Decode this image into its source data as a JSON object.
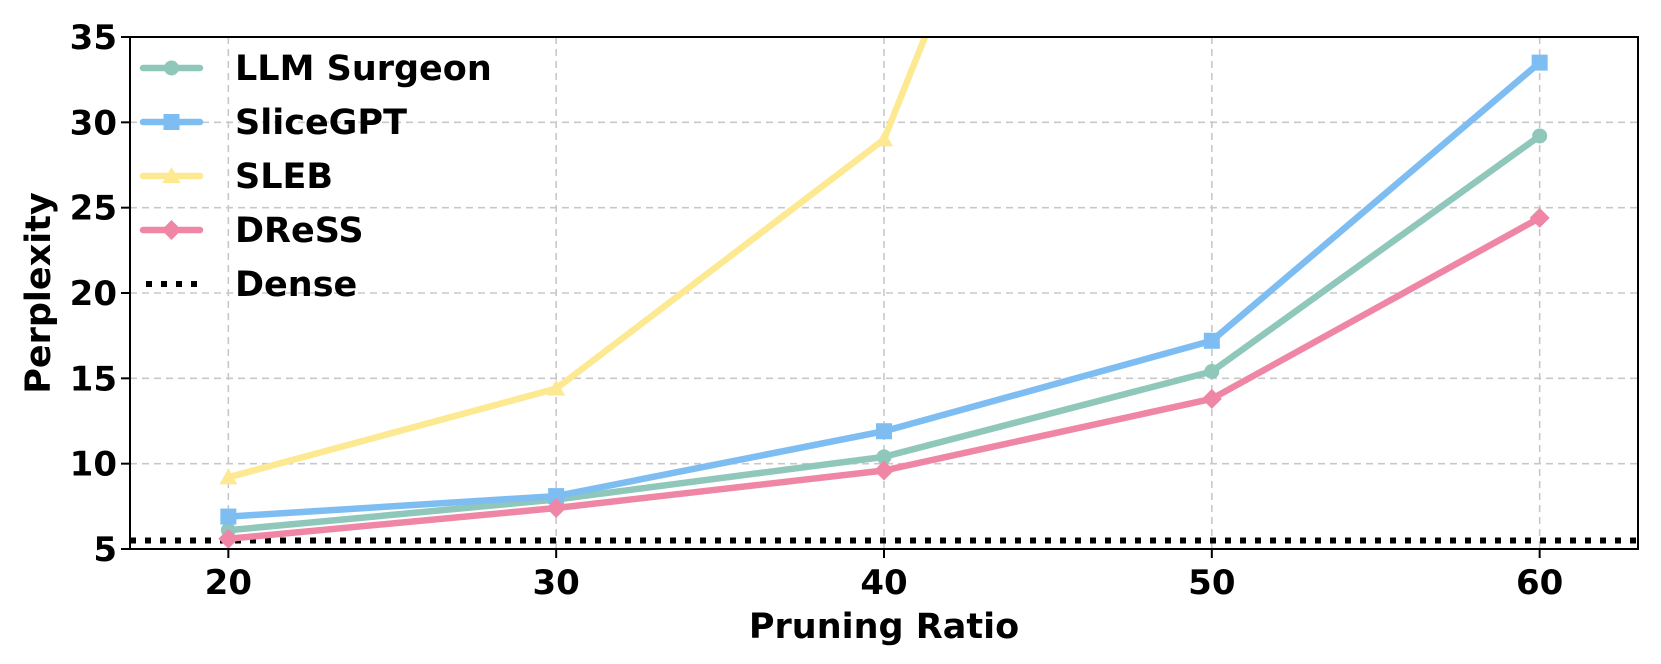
{
  "chart_data": {
    "type": "line",
    "title": "",
    "xlabel": "Pruning Ratio",
    "ylabel": "Perplexity",
    "x": [
      20,
      30,
      40,
      50,
      60
    ],
    "xlim": [
      17,
      63
    ],
    "ylim": [
      5,
      35
    ],
    "xticks": [
      20,
      30,
      40,
      50,
      60
    ],
    "yticks": [
      5,
      10,
      15,
      20,
      25,
      30,
      35
    ],
    "grid": true,
    "legend_position": "top-left",
    "series": [
      {
        "name": "LLM Surgeon",
        "values": [
          6.1,
          7.9,
          10.4,
          15.4,
          29.2
        ],
        "color": "#8fc7ba",
        "marker": "circle"
      },
      {
        "name": "SliceGPT",
        "values": [
          6.9,
          8.1,
          11.9,
          17.2,
          33.5
        ],
        "color": "#7dbdf2",
        "marker": "square"
      },
      {
        "name": "SLEB",
        "values": [
          9.2,
          14.4,
          29.0,
          null,
          null
        ],
        "extends_above_plot": true,
        "color": "#fde991",
        "marker": "triangle"
      },
      {
        "name": "DReSS",
        "values": [
          5.6,
          7.4,
          9.6,
          13.8,
          24.4
        ],
        "color": "#ef86a5",
        "marker": "diamond"
      },
      {
        "name": "Dense",
        "values": [
          5.5,
          5.5,
          5.5,
          5.5,
          5.5
        ],
        "color": "#000000",
        "marker": "none",
        "style": "dotted"
      }
    ]
  }
}
